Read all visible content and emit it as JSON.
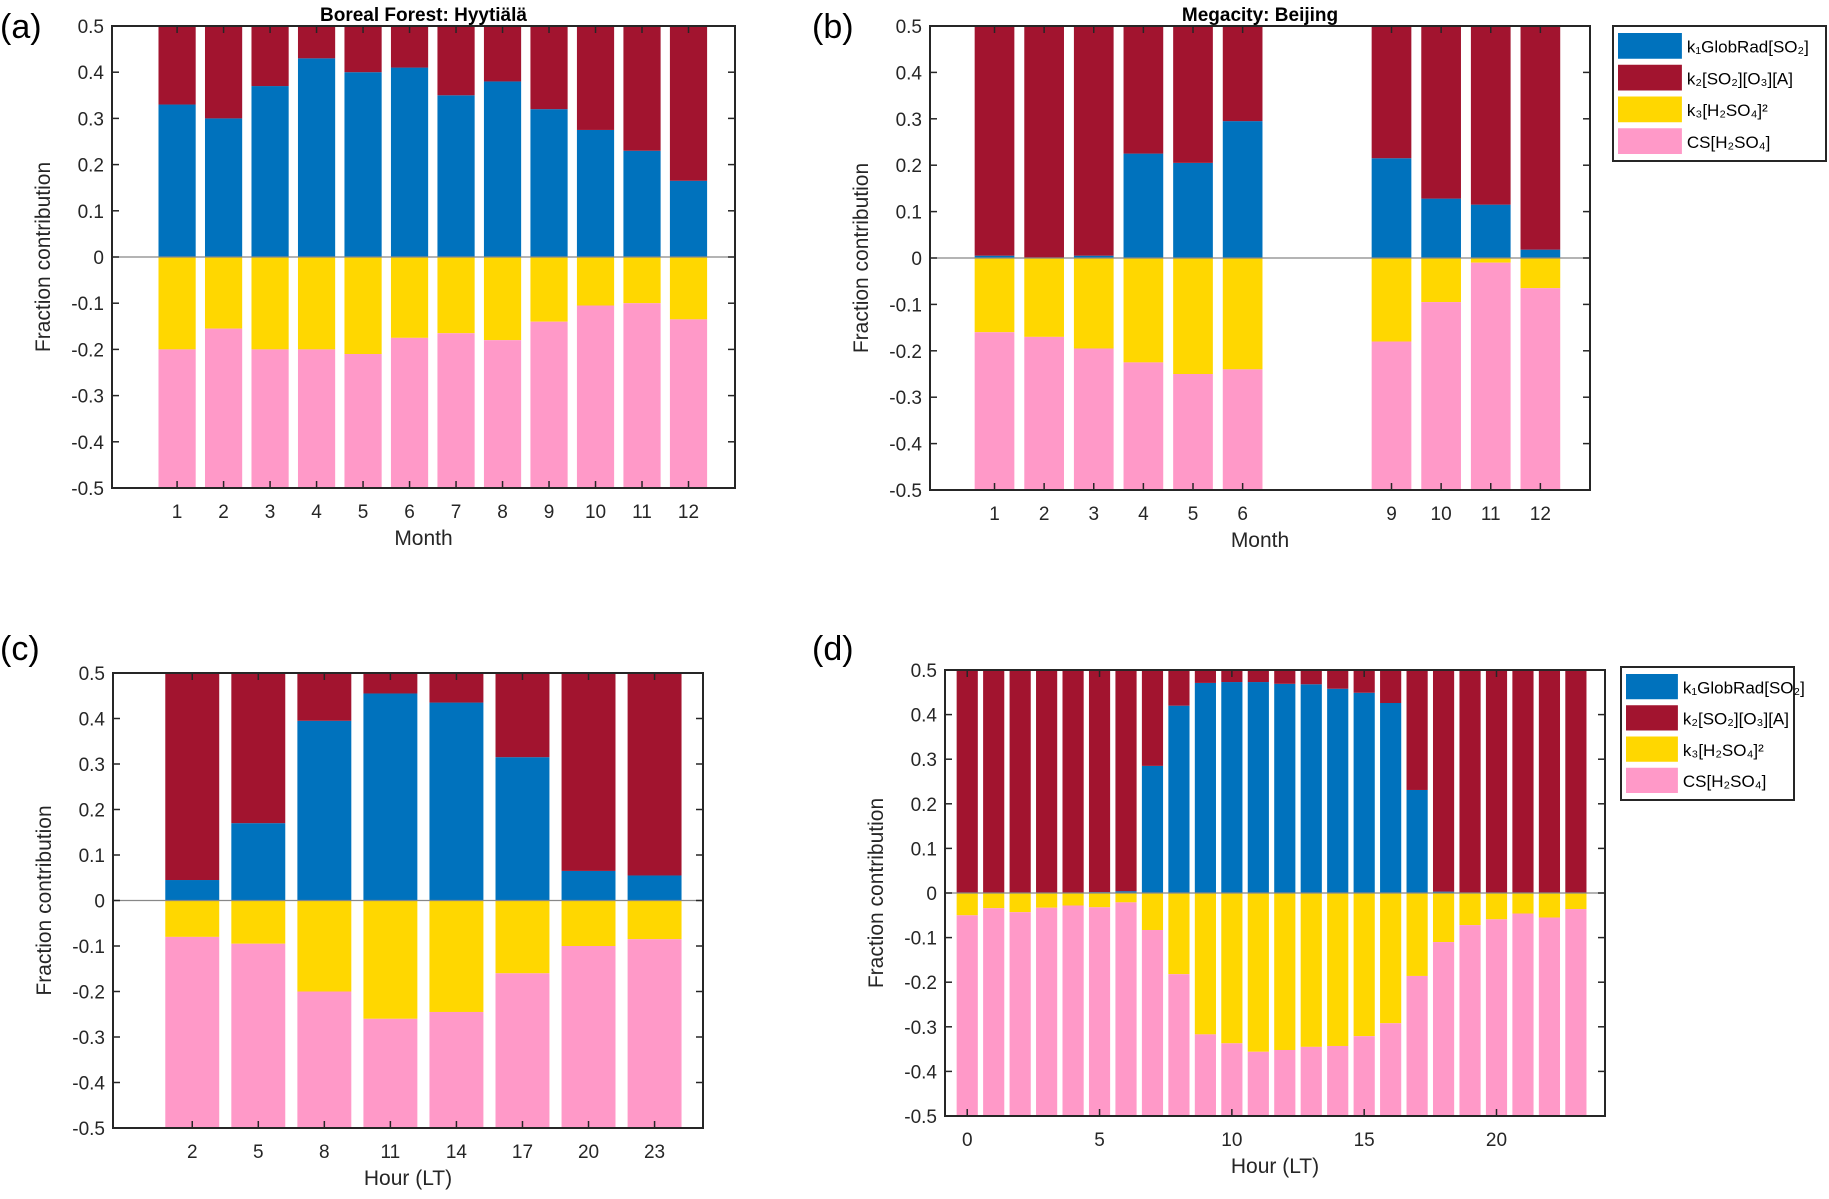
{
  "colors": {
    "k1": "#0072bd",
    "k2": "#a2142f",
    "k3": "#ffd700",
    "cs": "#ff99c8"
  },
  "legend": [
    "k₁GlobRad[SO₂]",
    "k₂[SO₂][O₃][A]",
    "k₃[H₂SO₄]²",
    "CS[H₂SO₄]"
  ],
  "chart_data": [
    {
      "panel": "(a)",
      "type": "bar",
      "stacked": true,
      "title": "Boreal Forest: Hyytiälä",
      "xlabel": "Month",
      "ylabel": "Fraction  contribution",
      "ylim": [
        -0.5,
        0.5
      ],
      "yticks": [
        -0.5,
        -0.4,
        -0.3,
        -0.2,
        -0.1,
        0,
        0.1,
        0.2,
        0.3,
        0.4,
        0.5
      ],
      "x": [
        1,
        2,
        3,
        4,
        5,
        6,
        7,
        8,
        9,
        10,
        11,
        12
      ],
      "xticks": [
        1,
        2,
        3,
        4,
        5,
        6,
        7,
        8,
        9,
        10,
        11,
        12
      ],
      "series": [
        {
          "name": "k₁GlobRad[SO₂]",
          "values": [
            0.33,
            0.3,
            0.37,
            0.43,
            0.4,
            0.41,
            0.35,
            0.38,
            0.32,
            0.275,
            0.23,
            0.165
          ]
        },
        {
          "name": "k₂[SO₂][O₃][A]",
          "values": [
            0.17,
            0.2,
            0.13,
            0.07,
            0.1,
            0.09,
            0.15,
            0.12,
            0.18,
            0.225,
            0.27,
            0.335
          ]
        },
        {
          "name": "k₃[H₂SO₄]²",
          "values": [
            -0.2,
            -0.155,
            -0.2,
            -0.2,
            -0.21,
            -0.175,
            -0.165,
            -0.18,
            -0.14,
            -0.105,
            -0.1,
            -0.135
          ]
        },
        {
          "name": "CS[H₂SO₄]",
          "values": [
            -0.3,
            -0.345,
            -0.3,
            -0.3,
            -0.29,
            -0.325,
            -0.335,
            -0.32,
            -0.36,
            -0.395,
            -0.4,
            -0.365
          ]
        }
      ],
      "legend": false
    },
    {
      "panel": "(b)",
      "type": "bar",
      "stacked": true,
      "title": "Megacity: Beijing",
      "xlabel": "Month",
      "ylabel": "Fraction  contribution",
      "ylim": [
        -0.5,
        0.5
      ],
      "yticks": [
        -0.5,
        -0.4,
        -0.3,
        -0.2,
        -0.1,
        0,
        0.1,
        0.2,
        0.3,
        0.4,
        0.5
      ],
      "x": [
        1,
        2,
        3,
        4,
        5,
        6,
        9,
        10,
        11,
        12
      ],
      "xticks": [
        1,
        2,
        3,
        4,
        5,
        6,
        9,
        10,
        11,
        12
      ],
      "series": [
        {
          "name": "k₁GlobRad[SO₂]",
          "values": [
            0.005,
            0.0,
            0.005,
            0.225,
            0.205,
            0.295,
            0.215,
            0.128,
            0.115,
            0.018
          ]
        },
        {
          "name": "k₂[SO₂][O₃][A]",
          "values": [
            0.495,
            0.5,
            0.495,
            0.275,
            0.295,
            0.205,
            0.285,
            0.372,
            0.385,
            0.482
          ]
        },
        {
          "name": "k₃[H₂SO₄]²",
          "values": [
            -0.16,
            -0.17,
            -0.195,
            -0.225,
            -0.25,
            -0.24,
            -0.18,
            -0.095,
            -0.01,
            -0.065
          ]
        },
        {
          "name": "CS[H₂SO₄]",
          "values": [
            -0.34,
            -0.33,
            -0.305,
            -0.275,
            -0.25,
            -0.26,
            -0.32,
            -0.405,
            -0.49,
            -0.435
          ]
        }
      ],
      "legend": "outside-right"
    },
    {
      "panel": "(c)",
      "type": "bar",
      "stacked": true,
      "title": "",
      "xlabel": "Hour (LT)",
      "ylabel": "Fraction  contribution",
      "ylim": [
        -0.5,
        0.5
      ],
      "yticks": [
        -0.5,
        -0.4,
        -0.3,
        -0.2,
        -0.1,
        0,
        0.1,
        0.2,
        0.3,
        0.4,
        0.5
      ],
      "x": [
        2,
        5,
        8,
        11,
        14,
        17,
        20,
        23
      ],
      "xticks": [
        2,
        5,
        8,
        11,
        14,
        17,
        20,
        23
      ],
      "series": [
        {
          "name": "k₁GlobRad[SO₂]",
          "values": [
            0.045,
            0.17,
            0.395,
            0.455,
            0.435,
            0.315,
            0.065,
            0.055
          ]
        },
        {
          "name": "k₂[SO₂][O₃][A]",
          "values": [
            0.455,
            0.33,
            0.105,
            0.045,
            0.065,
            0.185,
            0.435,
            0.445
          ]
        },
        {
          "name": "k₃[H₂SO₄]²",
          "values": [
            -0.08,
            -0.095,
            -0.2,
            -0.26,
            -0.245,
            -0.16,
            -0.1,
            -0.085
          ]
        },
        {
          "name": "CS[H₂SO₄]",
          "values": [
            -0.42,
            -0.405,
            -0.3,
            -0.24,
            -0.255,
            -0.34,
            -0.4,
            -0.415
          ]
        }
      ],
      "legend": false
    },
    {
      "panel": "(d)",
      "type": "bar",
      "stacked": true,
      "title": "",
      "xlabel": "Hour (LT)",
      "ylabel": "Fraction  contribution",
      "ylim": [
        -0.5,
        0.5
      ],
      "yticks": [
        -0.5,
        -0.4,
        -0.3,
        -0.2,
        -0.1,
        0,
        0.1,
        0.2,
        0.3,
        0.4,
        0.5
      ],
      "x": [
        0,
        1,
        2,
        3,
        4,
        5,
        6,
        7,
        8,
        9,
        10,
        11,
        12,
        13,
        14,
        15,
        16,
        17,
        18,
        19,
        20,
        21,
        22,
        23
      ],
      "xticks": [
        0,
        5,
        10,
        15,
        20
      ],
      "series": [
        {
          "name": "k₁GlobRad[SO₂]",
          "values": [
            0,
            0,
            0,
            0,
            0,
            0.002,
            0.004,
            0.285,
            0.42,
            0.471,
            0.473,
            0.473,
            0.469,
            0.468,
            0.458,
            0.449,
            0.426,
            0.231,
            0.003,
            0,
            0,
            0,
            0,
            0
          ]
        },
        {
          "name": "k₂[SO₂][O₃][A]",
          "values": [
            0.5,
            0.5,
            0.5,
            0.5,
            0.5,
            0.498,
            0.496,
            0.215,
            0.08,
            0.029,
            0.027,
            0.027,
            0.031,
            0.032,
            0.042,
            0.051,
            0.074,
            0.269,
            0.497,
            0.5,
            0.5,
            0.5,
            0.5,
            0.5
          ]
        },
        {
          "name": "k₃[H₂SO₄]²",
          "values": [
            -0.05,
            -0.034,
            -0.043,
            -0.033,
            -0.028,
            -0.032,
            -0.021,
            -0.083,
            -0.182,
            -0.317,
            -0.337,
            -0.356,
            -0.352,
            -0.345,
            -0.343,
            -0.321,
            -0.292,
            -0.186,
            -0.11,
            -0.072,
            -0.059,
            -0.046,
            -0.055,
            -0.036
          ]
        },
        {
          "name": "CS[H₂SO₄]",
          "values": [
            -0.45,
            -0.466,
            -0.457,
            -0.467,
            -0.472,
            -0.468,
            -0.479,
            -0.417,
            -0.318,
            -0.183,
            -0.163,
            -0.144,
            -0.148,
            -0.155,
            -0.157,
            -0.179,
            -0.208,
            -0.314,
            -0.39,
            -0.428,
            -0.441,
            -0.454,
            -0.445,
            -0.464
          ]
        }
      ],
      "legend": "outside-right"
    }
  ]
}
